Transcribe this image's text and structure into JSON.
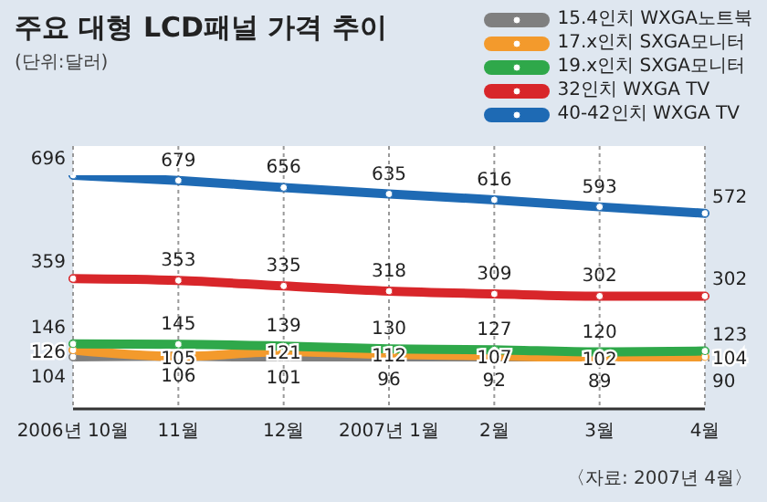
{
  "chart_data": {
    "type": "line",
    "title": "주요 대형 LCD패널 가격 추이",
    "subtitle": "(단위:달러)",
    "categories": [
      "2006년 10월",
      "11월",
      "12월",
      "2007년 1월",
      "2월",
      "3월",
      "4월"
    ],
    "series": [
      {
        "name": "15.4인치 WXGA노트북",
        "color": "#7f7f7f",
        "values": [
          104,
          106,
          101,
          96,
          92,
          89,
          90
        ]
      },
      {
        "name": "17.x인치 SXGA모니터",
        "color": "#f39a2c",
        "values": [
          126,
          105,
          121,
          112,
          107,
          102,
          104
        ]
      },
      {
        "name": "19.x인치 SXGA모니터",
        "color": "#2fa84a",
        "values": [
          146,
          145,
          139,
          130,
          127,
          120,
          123
        ]
      },
      {
        "name": "32인치 WXGA TV",
        "color": "#d8262a",
        "values": [
          359,
          353,
          335,
          318,
          309,
          302,
          302
        ]
      },
      {
        "name": "40-42인치 WXGA TV",
        "color": "#1e6ab4",
        "values": [
          696,
          679,
          656,
          635,
          616,
          593,
          572
        ]
      }
    ],
    "data_labels": true,
    "grid": "x",
    "legend": "top right",
    "marker": "circle",
    "line_style": "solid",
    "annotations": [
      "〈자료: 2007년 4월〉"
    ]
  }
}
